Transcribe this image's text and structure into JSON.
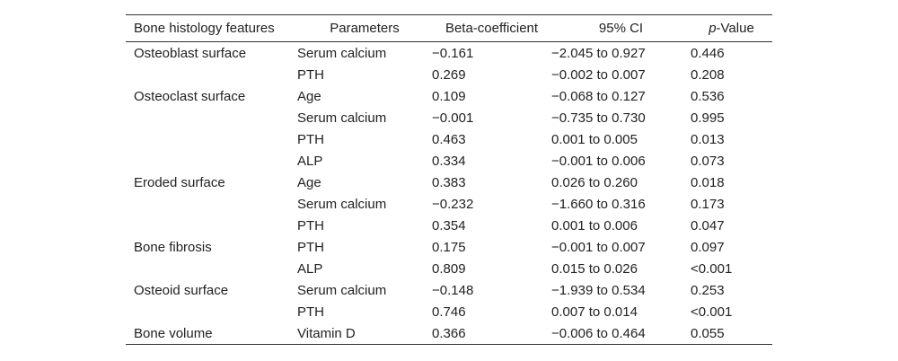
{
  "table": {
    "header": [
      "Bone histology features",
      "Parameters",
      "Beta-coefficient",
      "95% CI",
      [
        "p",
        "-Value"
      ]
    ],
    "groups": [
      {
        "feature": "Osteoblast surface",
        "rows": [
          [
            "Serum calcium",
            "−0.161",
            "−2.045 to 0.927",
            "0.446"
          ],
          [
            "PTH",
            "0.269",
            "−0.002 to 0.007",
            "0.208"
          ]
        ]
      },
      {
        "feature": "Osteoclast surface",
        "rows": [
          [
            "Age",
            "0.109",
            "−0.068 to 0.127",
            "0.536"
          ],
          [
            "Serum calcium",
            "−0.001",
            "−0.735 to 0.730",
            "0.995"
          ],
          [
            "PTH",
            "0.463",
            "0.001 to 0.005",
            "0.013"
          ],
          [
            "ALP",
            "0.334",
            "−0.001 to 0.006",
            "0.073"
          ]
        ]
      },
      {
        "feature": "Eroded surface",
        "rows": [
          [
            "Age",
            "0.383",
            "0.026 to 0.260",
            "0.018"
          ],
          [
            "Serum calcium",
            "−0.232",
            "−1.660 to 0.316",
            "0.173"
          ],
          [
            "PTH",
            "0.354",
            "0.001 to 0.006",
            "0.047"
          ]
        ]
      },
      {
        "feature": "Bone fibrosis",
        "rows": [
          [
            "PTH",
            "0.175",
            "−0.001 to 0.007",
            "0.097"
          ],
          [
            "ALP",
            "0.809",
            "0.015 to 0.026",
            "<0.001"
          ]
        ]
      },
      {
        "feature": "Osteoid surface",
        "rows": [
          [
            "Serum calcium",
            "−0.148",
            "−1.939 to 0.534",
            "0.253"
          ],
          [
            "PTH",
            "0.746",
            "0.007 to 0.014",
            "<0.001"
          ]
        ]
      },
      {
        "feature": "Bone volume",
        "rows": [
          [
            "Vitamin D",
            "0.366",
            "−0.006 to 0.464",
            "0.055"
          ]
        ]
      }
    ]
  }
}
